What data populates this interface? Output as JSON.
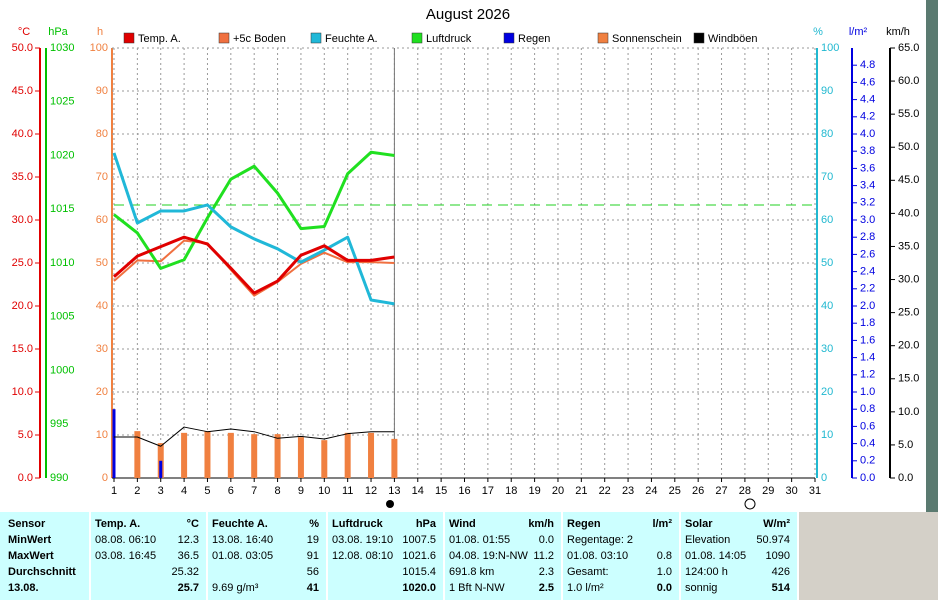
{
  "chart_data": {
    "type": "line",
    "title": "August 2026",
    "x": [
      1,
      2,
      3,
      4,
      5,
      6,
      7,
      8,
      9,
      10,
      11,
      12,
      13
    ],
    "xlim": [
      1,
      31
    ],
    "xticks": [
      1,
      2,
      3,
      4,
      5,
      6,
      7,
      8,
      9,
      10,
      11,
      12,
      13,
      14,
      15,
      16,
      17,
      18,
      19,
      20,
      21,
      22,
      23,
      24,
      25,
      26,
      27,
      28,
      29,
      30,
      31
    ],
    "axes": [
      {
        "label": "°C",
        "color": "#e00000",
        "lim": [
          0,
          50
        ],
        "ticks": [
          {
            "value": 0,
            "label": "0.0"
          },
          {
            "value": 5,
            "label": "5.0"
          },
          {
            "value": 10,
            "label": "10.0"
          },
          {
            "value": 15,
            "label": "15.0"
          },
          {
            "value": 20,
            "label": "20.0"
          },
          {
            "value": 25,
            "label": "25.0"
          },
          {
            "value": 30,
            "label": "30.0"
          },
          {
            "value": 35,
            "label": "35.0"
          },
          {
            "value": 40,
            "label": "40.0"
          },
          {
            "value": 45,
            "label": "45.0"
          },
          {
            "value": 50,
            "label": "50.0"
          }
        ]
      },
      {
        "label": "hPa",
        "color": "#00c000",
        "lim": [
          990,
          1030
        ],
        "ticks": [
          990,
          995,
          1000,
          1005,
          1010,
          1015,
          1020,
          1025,
          1030
        ]
      },
      {
        "label": "h",
        "color": "#f08040",
        "lim": [
          0,
          100
        ],
        "ticks": [
          0,
          10,
          20,
          30,
          40,
          50,
          60,
          70,
          80,
          90,
          100
        ],
        "grid": true
      },
      {
        "label": "%",
        "color": "#20b8d0",
        "lim": [
          0,
          100
        ],
        "ticks": [
          0,
          10,
          20,
          30,
          40,
          50,
          60,
          70,
          80,
          90,
          100
        ]
      },
      {
        "label": "l/m²",
        "color": "#0000e0",
        "lim": [
          0,
          5
        ],
        "ticks": [
          {
            "value": 0,
            "label": "0.0"
          },
          0.2,
          0.4,
          0.6,
          0.8,
          {
            "value": 1,
            "label": "1.0"
          },
          1.2,
          1.4,
          1.6,
          1.8,
          {
            "value": 2,
            "label": "2.0"
          },
          2.2,
          2.4,
          2.6,
          2.8,
          {
            "value": 3,
            "label": "3.0"
          },
          3.2,
          3.4,
          3.6,
          3.8,
          {
            "value": 4,
            "label": "4.0"
          },
          4.2,
          4.4,
          4.6,
          4.8
        ]
      },
      {
        "label": "km/h",
        "color": "#000000",
        "lim": [
          0,
          65
        ],
        "ticks": [
          {
            "value": 0,
            "label": "0.0"
          },
          {
            "value": 5,
            "label": "5.0"
          },
          {
            "value": 10,
            "label": "10.0"
          },
          {
            "value": 15,
            "label": "15.0"
          },
          {
            "value": 20,
            "label": "20.0"
          },
          {
            "value": 25,
            "label": "25.0"
          },
          {
            "value": 30,
            "label": "30.0"
          },
          {
            "value": 35,
            "label": "35.0"
          },
          {
            "value": 40,
            "label": "40.0"
          },
          {
            "value": 45,
            "label": "45.0"
          },
          {
            "value": 50,
            "label": "50.0"
          },
          {
            "value": 55,
            "label": "55.0"
          },
          {
            "value": 60,
            "label": "60.0"
          },
          {
            "value": 65,
            "label": "65.0"
          }
        ]
      }
    ],
    "series": [
      {
        "name": "Temp. A.",
        "color": "#e00000",
        "axis": 0,
        "mark": "line",
        "values": [
          23.4,
          25.8,
          26.9,
          28.0,
          27.2,
          24.4,
          21.5,
          22.9,
          25.9,
          27.0,
          25.3,
          25.3,
          25.7
        ]
      },
      {
        "name": "+5c Boden",
        "color": "#f07040",
        "axis": 0,
        "mark": "line",
        "values": [
          22.9,
          25.3,
          25.2,
          27.6,
          27.3,
          24.2,
          21.2,
          22.8,
          24.9,
          26.2,
          25.1,
          25.1,
          25.0
        ]
      },
      {
        "name": "Feuchte A.",
        "color": "#20b8d8",
        "axis": 3,
        "mark": "line",
        "values": [
          75.6,
          59.3,
          62.1,
          62.1,
          63.5,
          58.4,
          55.6,
          53.3,
          50.2,
          53.0,
          56.0,
          41.4,
          40.5
        ]
      },
      {
        "name": "Luftdruck",
        "color": "#20e020",
        "axis": 1,
        "mark": "line",
        "values": [
          1014.5,
          1012.8,
          1009.5,
          1010.3,
          1014.2,
          1017.8,
          1019.0,
          1016.5,
          1013.2,
          1013.4,
          1018.3,
          1020.3,
          1020.0
        ]
      },
      {
        "name": "Regen",
        "color": "#0000e0",
        "axis": 4,
        "mark": "bar",
        "values": [
          0.8,
          0,
          0.2,
          0,
          0,
          0,
          0,
          0,
          0,
          0,
          0,
          0,
          0
        ]
      },
      {
        "name": "Sonnenschein",
        "color": "#f08040",
        "axis": 2,
        "mark": "bar",
        "values": [
          null,
          10.9,
          8.1,
          10.5,
          10.9,
          10.5,
          10.2,
          10.2,
          9.5,
          8.8,
          10.5,
          10.5,
          9.1
        ]
      },
      {
        "name": "Windböen",
        "color": "#000000",
        "axis": 5,
        "mark": "line",
        "values": [
          6.2,
          6.2,
          4.8,
          7.7,
          7.0,
          7.4,
          7.0,
          6.0,
          6.3,
          5.9,
          6.7,
          7.0,
          7.0
        ]
      }
    ],
    "reference_lines": [
      {
        "axis": 1,
        "value": 1015.4,
        "color": "#20d020"
      }
    ]
  },
  "table": {
    "row_labels": [
      "Sensor",
      "MinWert",
      "MaxWert",
      "Durchschnitt",
      "13.08."
    ],
    "columns": [
      {
        "header": "Temp. A.",
        "unit": "°C",
        "rows": [
          [
            "08.08. 06:10",
            "12.3"
          ],
          [
            "03.08. 16:45",
            "36.5"
          ],
          [
            null,
            "25.32"
          ],
          [
            null,
            "25.7"
          ]
        ]
      },
      {
        "header": "Feuchte A.",
        "unit": "%",
        "rows": [
          [
            "13.08. 16:40",
            "19"
          ],
          [
            "01.08. 03:05",
            "91"
          ],
          [
            null,
            "56"
          ],
          [
            "9.69 g/m³",
            "41"
          ]
        ]
      },
      {
        "header": "Luftdruck",
        "unit": "hPa",
        "rows": [
          [
            "03.08. 19:10",
            "1007.5"
          ],
          [
            "12.08. 08:10",
            "1021.6"
          ],
          [
            null,
            "1015.4"
          ],
          [
            null,
            "1020.0"
          ]
        ]
      },
      {
        "header": "Wind",
        "unit": "km/h",
        "rows": [
          [
            "01.08. 01:55",
            "0.0"
          ],
          [
            "04.08. 19:N-NW",
            "11.2"
          ],
          [
            "691.8 km",
            "2.3"
          ],
          [
            "1 Bft N-NW",
            "2.5"
          ]
        ]
      },
      {
        "header": "Regen",
        "unit": "l/m²",
        "rows": [
          [
            "Regentage: 2",
            null
          ],
          [
            "01.08. 03:10",
            "0.8"
          ],
          [
            "Gesamt:",
            "1.0"
          ],
          [
            "1.0 l/m²",
            "0.0"
          ]
        ]
      },
      {
        "header": "Solar",
        "unit": "W/m²",
        "rows": [
          [
            "Elevation",
            "50.974"
          ],
          [
            "01.08. 14:05",
            "1090"
          ],
          [
            "124:00 h",
            "426"
          ],
          [
            "sonnig",
            "514"
          ]
        ]
      }
    ]
  }
}
